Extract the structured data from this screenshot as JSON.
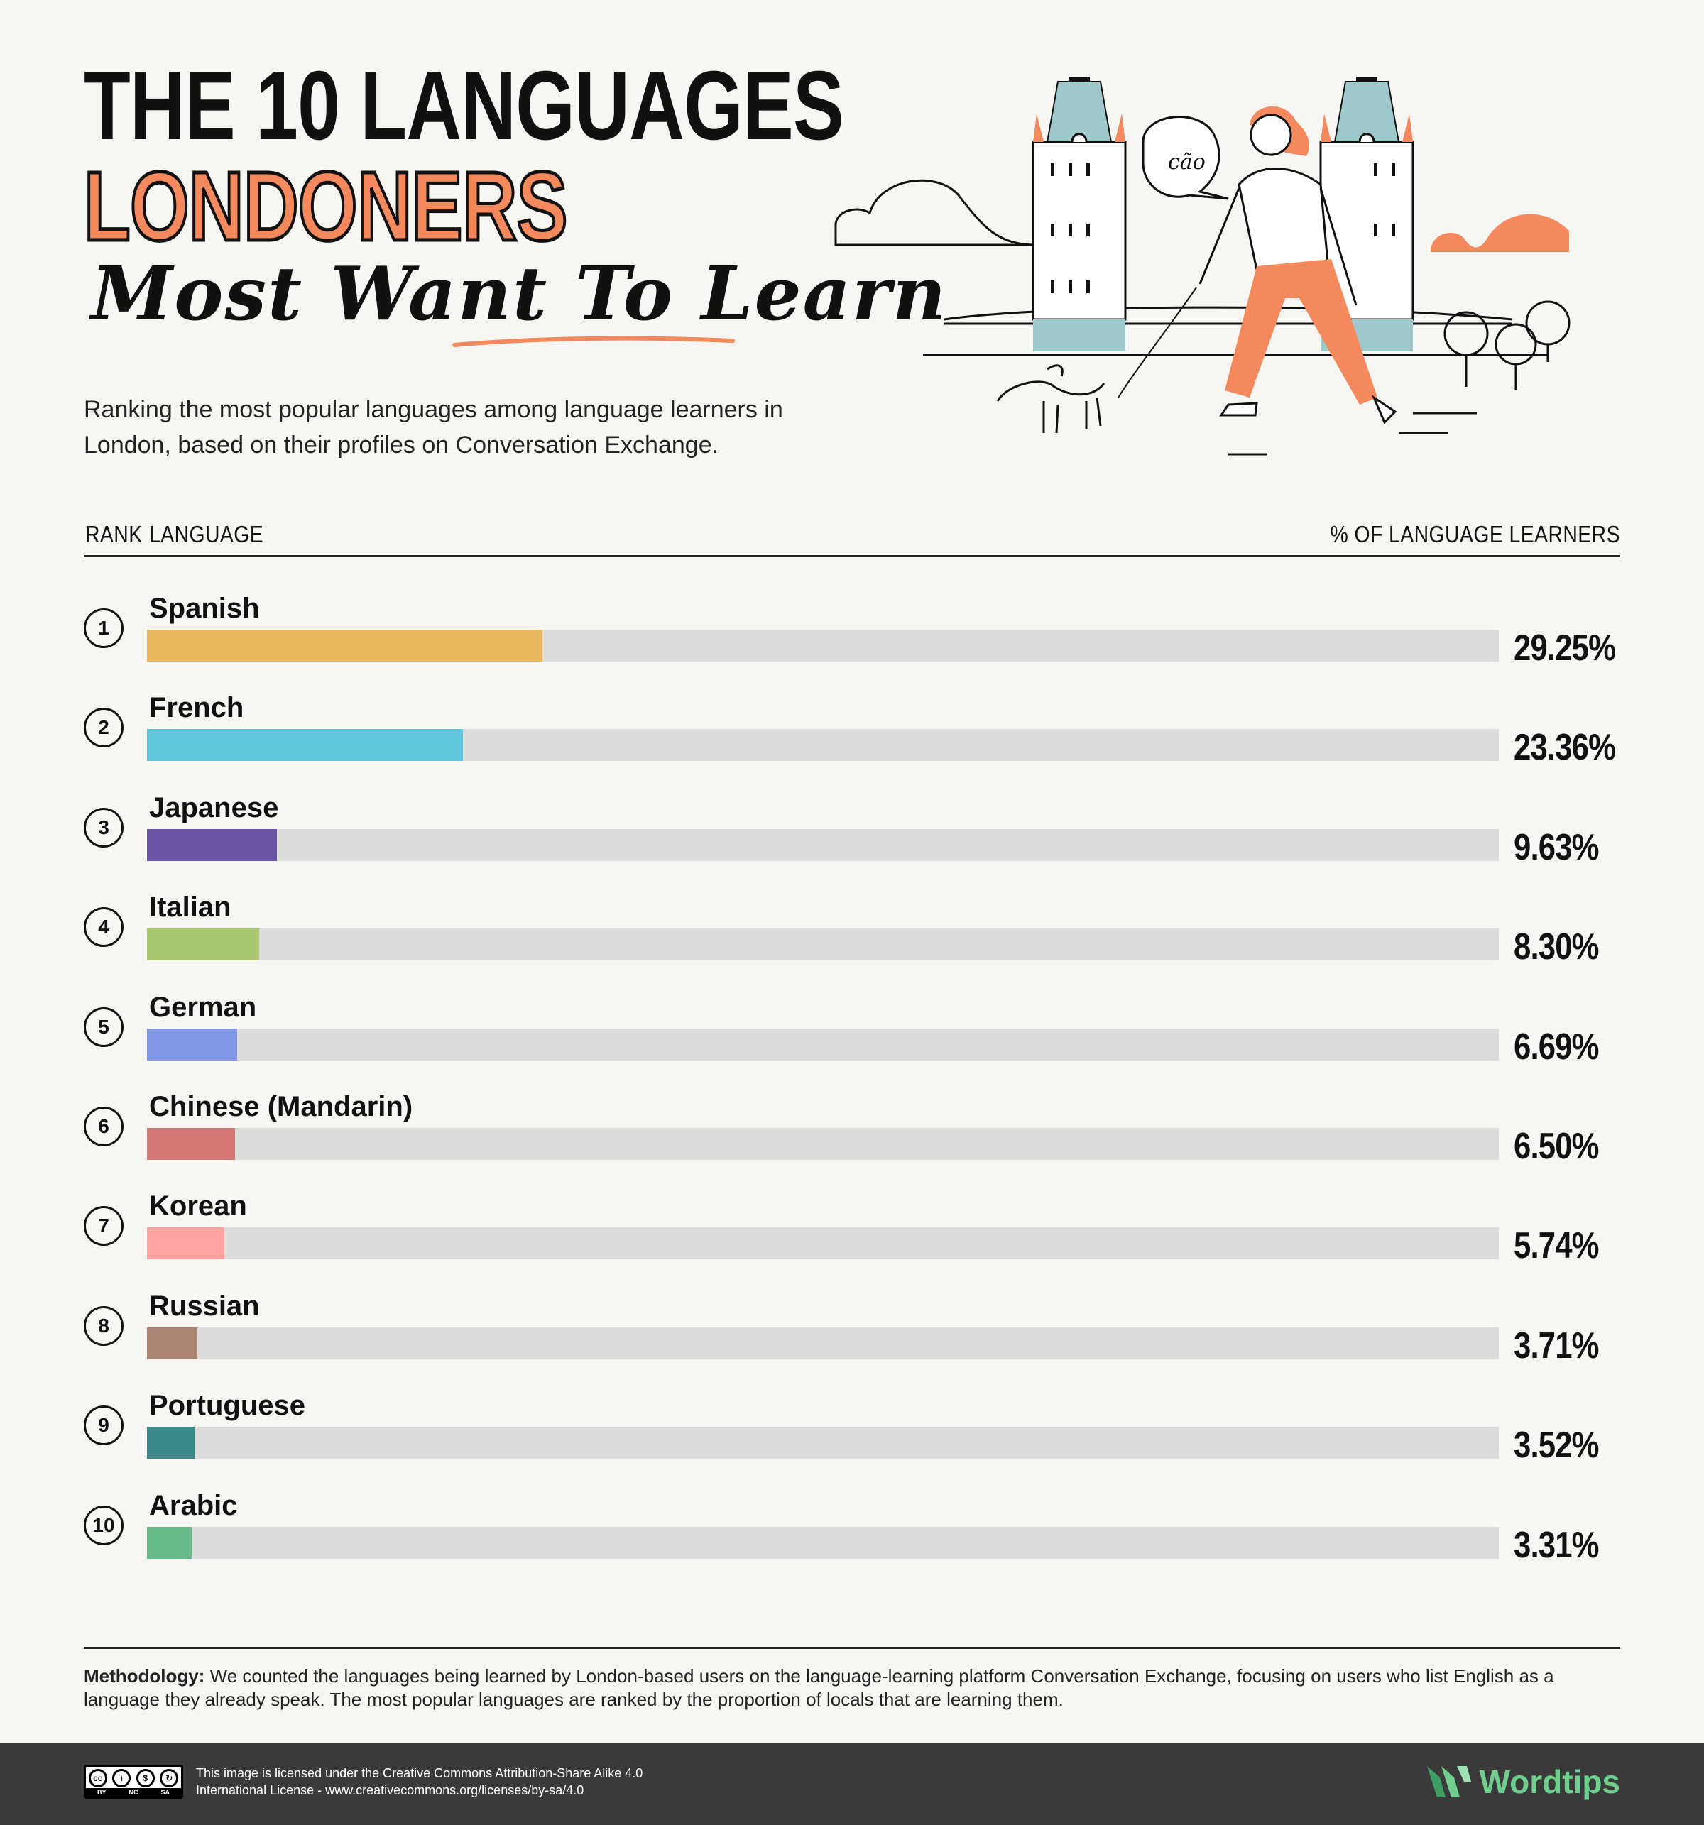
{
  "header": {
    "title_line1": "THE 10 LANGUAGES",
    "title_line2": "LONDONERS",
    "title_line3": "Most Want To Learn",
    "subtitle": "Ranking the most popular languages among language learners in London, based on their profiles on Conversation Exchange."
  },
  "illustration": {
    "speech_text": "cão",
    "accent_color": "#f4895d",
    "tower_color": "#9ec8c9"
  },
  "columns": {
    "rank": "RANK",
    "language": "LANGUAGE",
    "percent": "% OF LANGUAGE LEARNERS"
  },
  "chart_data": {
    "type": "bar",
    "orientation": "horizontal",
    "xlim": [
      0,
      100
    ],
    "categories": [
      "Spanish",
      "French",
      "Japanese",
      "Italian",
      "German",
      "Chinese (Mandarin)",
      "Korean",
      "Russian",
      "Portuguese",
      "Arabic"
    ],
    "ranks": [
      "1",
      "2",
      "3",
      "4",
      "5",
      "6",
      "7",
      "8",
      "9",
      "10"
    ],
    "values": [
      29.25,
      23.36,
      9.63,
      8.3,
      6.69,
      6.5,
      5.74,
      3.71,
      3.52,
      3.31
    ],
    "labels": [
      "29.25%",
      "23.36%",
      "9.63%",
      "8.30%",
      "6.69%",
      "6.50%",
      "5.74%",
      "3.71%",
      "3.52%",
      "3.31%"
    ],
    "colors": [
      "#e9b85c",
      "#5ec7d9",
      "#6b55a6",
      "#a8c66e",
      "#8297e6",
      "#d37777",
      "#ffa3a3",
      "#ab8474",
      "#3a8a89",
      "#66b988"
    ],
    "track_color": "#dcdcdc"
  },
  "footer": {
    "methodology_label": "Methodology:",
    "methodology_text": " We counted the languages being learned by London-based users on the language-learning platform Conversation Exchange, focusing on users who list English as a language they already speak. The most popular languages are ranked by the proportion of locals that are learning them.",
    "cc_tags": [
      "BY",
      "NC",
      "SA"
    ],
    "license_text": "This image is licensed under the Creative Commons Attribution-Share Alike 4.0 International License - www.creativecommons.org/licenses/by-sa/4.0",
    "brand": "Wordtips"
  }
}
